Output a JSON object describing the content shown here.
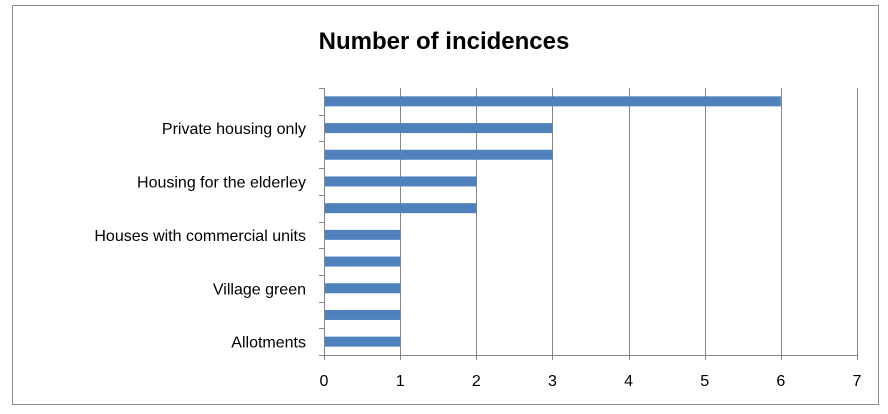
{
  "chart_data": {
    "type": "bar",
    "orientation": "horizontal",
    "title": "Number of incidences",
    "categories": [
      "",
      "Private housing only",
      "",
      "Housing for  the elderley",
      "",
      "Houses with commercial units",
      "",
      "Village green",
      "",
      "Allotments"
    ],
    "values": [
      6,
      3,
      3,
      2,
      2,
      1,
      1,
      1,
      1,
      1
    ],
    "xlim": [
      0,
      7
    ],
    "xticks": [
      "0",
      "1",
      "2",
      "3",
      "4",
      "5",
      "6",
      "7"
    ],
    "grid": true,
    "legend": "none",
    "bar_color": "#4f81bd",
    "grid_color": "#868686"
  }
}
